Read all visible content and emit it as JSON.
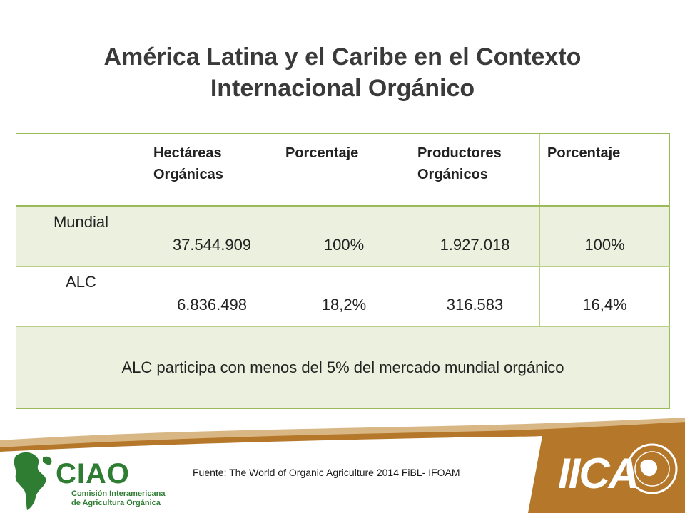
{
  "title": {
    "line1": "América Latina y el Caribe en el Contexto",
    "line2": "Internacional Orgánico"
  },
  "table": {
    "headers": [
      {
        "line1": "",
        "line2": ""
      },
      {
        "line1": "Hectáreas",
        "line2": "Orgánicas"
      },
      {
        "line1": "Porcentaje",
        "line2": ""
      },
      {
        "line1": "Productores",
        "line2": "Orgánicos"
      },
      {
        "line1": "Porcentaje",
        "line2": ""
      }
    ],
    "rows": [
      {
        "label": "Mundial",
        "cells": [
          "37.544.909",
          "100%",
          "1.927.018",
          "100%"
        ]
      },
      {
        "label": "ALC",
        "cells": [
          "6.836.498",
          "18,2%",
          "316.583",
          "16,4%"
        ]
      }
    ],
    "note": "ALC  participa con menos del 5% del mercado mundial orgánico"
  },
  "footer": {
    "source": "Fuente: The World of Organic Agriculture 2014 FiBL- IFOAM",
    "ciao_logo": {
      "name": "CIAO",
      "sub_line1": "Comisión Interamericana",
      "sub_line2": "de Agricultura Orgánica"
    },
    "iica_logo": {
      "name": "IICA"
    }
  },
  "colors": {
    "title": "#3a3a3a",
    "table_border": "#9bbb59",
    "row_fill": "#ebf1de",
    "footer_brown": "#b5782b",
    "footer_tan": "#d9b784",
    "ciao_green": "#2e7d32"
  }
}
